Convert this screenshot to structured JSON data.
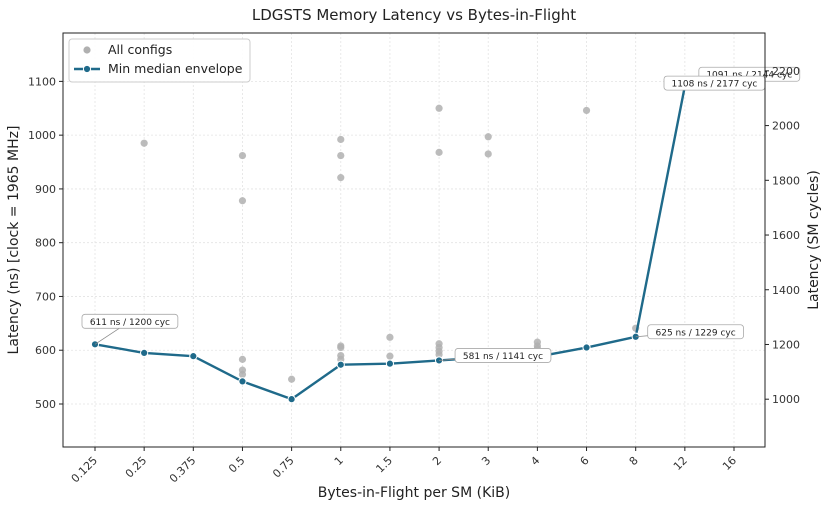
{
  "chart_data": {
    "type": "scatter+line",
    "title": "LDGSTS Memory Latency vs Bytes-in-Flight",
    "xlabel": "Bytes-in-Flight per SM (KiB)",
    "ylabel_left": "Latency (ns)  [clock = 1965 MHz]",
    "ylabel_right": "Latency (SM cycles)",
    "x_scale": "categorical",
    "categories": [
      "0.125",
      "0.25",
      "0.375",
      "0.5",
      "0.75",
      "1",
      "1.5",
      "2",
      "3",
      "4",
      "6",
      "8",
      "12",
      "16"
    ],
    "ylim_left": [
      420,
      1190
    ],
    "ylim_right": [
      825.3,
      2338.35
    ],
    "left_ticks": [
      500,
      600,
      700,
      800,
      900,
      1000,
      1100
    ],
    "right_ticks": [
      1000,
      1200,
      1400,
      1600,
      1800,
      2000,
      2200
    ],
    "grid": true,
    "legend_position": "top-left",
    "series": [
      {
        "name": "All configs",
        "kind": "scatter",
        "color": "#b0b0b0",
        "points": [
          {
            "x": "0.125",
            "y": 611
          },
          {
            "x": "0.25",
            "y": 985
          },
          {
            "x": "0.25",
            "y": 595
          },
          {
            "x": "0.375",
            "y": 589
          },
          {
            "x": "0.5",
            "y": 962
          },
          {
            "x": "0.5",
            "y": 878
          },
          {
            "x": "0.5",
            "y": 583
          },
          {
            "x": "0.5",
            "y": 563
          },
          {
            "x": "0.5",
            "y": 555
          },
          {
            "x": "0.5",
            "y": 542
          },
          {
            "x": "0.75",
            "y": 546
          },
          {
            "x": "0.75",
            "y": 509
          },
          {
            "x": "1",
            "y": 992
          },
          {
            "x": "1",
            "y": 962
          },
          {
            "x": "1",
            "y": 921
          },
          {
            "x": "1",
            "y": 608
          },
          {
            "x": "1",
            "y": 605
          },
          {
            "x": "1",
            "y": 590
          },
          {
            "x": "1",
            "y": 583
          },
          {
            "x": "1",
            "y": 573
          },
          {
            "x": "1.5",
            "y": 624
          },
          {
            "x": "1.5",
            "y": 589
          },
          {
            "x": "1.5",
            "y": 575
          },
          {
            "x": "2",
            "y": 1050
          },
          {
            "x": "2",
            "y": 968
          },
          {
            "x": "2",
            "y": 612
          },
          {
            "x": "2",
            "y": 605
          },
          {
            "x": "2",
            "y": 598
          },
          {
            "x": "2",
            "y": 592
          },
          {
            "x": "2",
            "y": 581
          },
          {
            "x": "3",
            "y": 997
          },
          {
            "x": "3",
            "y": 965
          },
          {
            "x": "3",
            "y": 587
          },
          {
            "x": "4",
            "y": 615
          },
          {
            "x": "4",
            "y": 608
          },
          {
            "x": "4",
            "y": 603
          },
          {
            "x": "4",
            "y": 598
          },
          {
            "x": "4",
            "y": 588
          },
          {
            "x": "6",
            "y": 1046
          },
          {
            "x": "6",
            "y": 605
          },
          {
            "x": "8",
            "y": 641
          },
          {
            "x": "8",
            "y": 625
          },
          {
            "x": "12",
            "y": 1091
          },
          {
            "x": "16",
            "y": 1108
          }
        ]
      },
      {
        "name": "Min median envelope",
        "kind": "line",
        "color": "#1f6a8a",
        "values": [
          611,
          595,
          589,
          542,
          509,
          573,
          575,
          581,
          587,
          588,
          605,
          625,
          1091,
          1108
        ]
      }
    ],
    "annotations": [
      {
        "text": "611 ns / 1200 cyc",
        "x": "0.125",
        "y": 611
      },
      {
        "text": "581 ns / 1141 cyc",
        "x": "2",
        "y": 581
      },
      {
        "text": "625 ns / 1229 cyc",
        "x": "8",
        "y": 625
      },
      {
        "text": "1091 ns / 2144 cyc",
        "x": "12",
        "y": 1091
      },
      {
        "text": "1108 ns / 2177 cyc",
        "x": "16",
        "y": 1108
      }
    ]
  }
}
